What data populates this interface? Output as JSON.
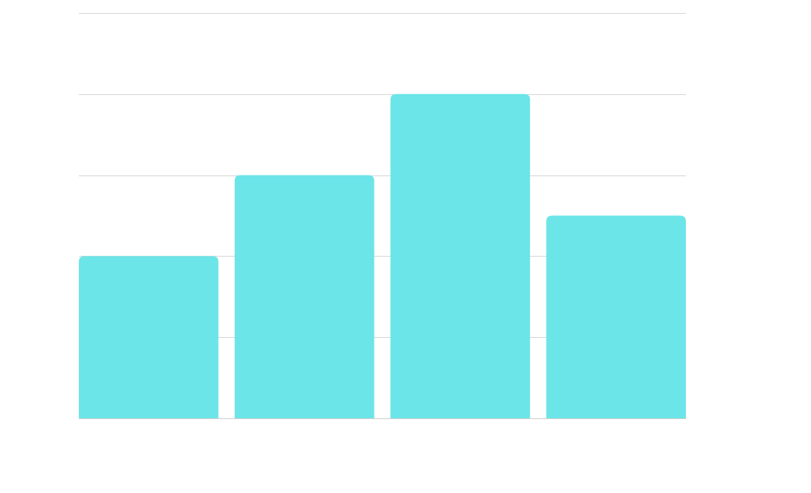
{
  "chart_data": {
    "type": "bar",
    "categories": [
      "",
      "",
      "",
      ""
    ],
    "values": [
      4,
      6,
      8,
      5
    ],
    "ylim": [
      0,
      10
    ],
    "grid": true,
    "gridline_values": [
      2,
      4,
      6,
      8,
      10
    ],
    "legend": "none",
    "title": "",
    "xlabel": "",
    "ylabel": "",
    "colors": {
      "bar": "#6be5e8",
      "gridline": "#d9d9d9",
      "background": "#ffffff"
    }
  }
}
